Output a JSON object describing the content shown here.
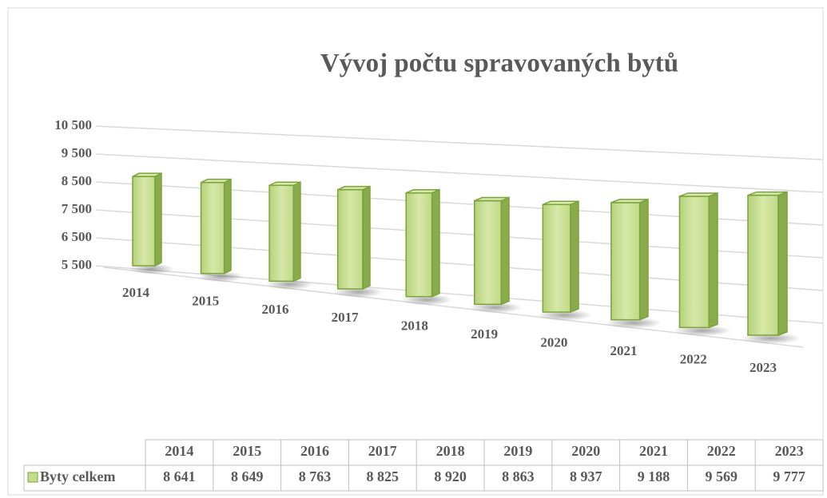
{
  "chart_data": {
    "type": "bar",
    "title": "Vývoj počtu spravovaných bytů",
    "categories": [
      "2014",
      "2015",
      "2016",
      "2017",
      "2018",
      "2019",
      "2020",
      "2021",
      "2022",
      "2023"
    ],
    "series": [
      {
        "name": "Byty celkem",
        "color": "#c4dc8c",
        "values": [
          8641,
          8649,
          8763,
          8825,
          8920,
          8863,
          8937,
          9188,
          9569,
          9777
        ],
        "value_labels": [
          "8 641",
          "8 649",
          "8 763",
          "8 825",
          "8 920",
          "8 863",
          "8 937",
          "9 188",
          "9 569",
          "9 777"
        ]
      }
    ],
    "ylim": [
      5500,
      10500
    ],
    "yticks": [
      {
        "value": 5500,
        "label": "5 500"
      },
      {
        "value": 6500,
        "label": "6 500"
      },
      {
        "value": 7500,
        "label": "7 500"
      },
      {
        "value": 8500,
        "label": "8 500"
      },
      {
        "value": 9500,
        "label": "9 500"
      },
      {
        "value": 10500,
        "label": "10 500"
      }
    ],
    "grid": true,
    "legend": "table"
  }
}
